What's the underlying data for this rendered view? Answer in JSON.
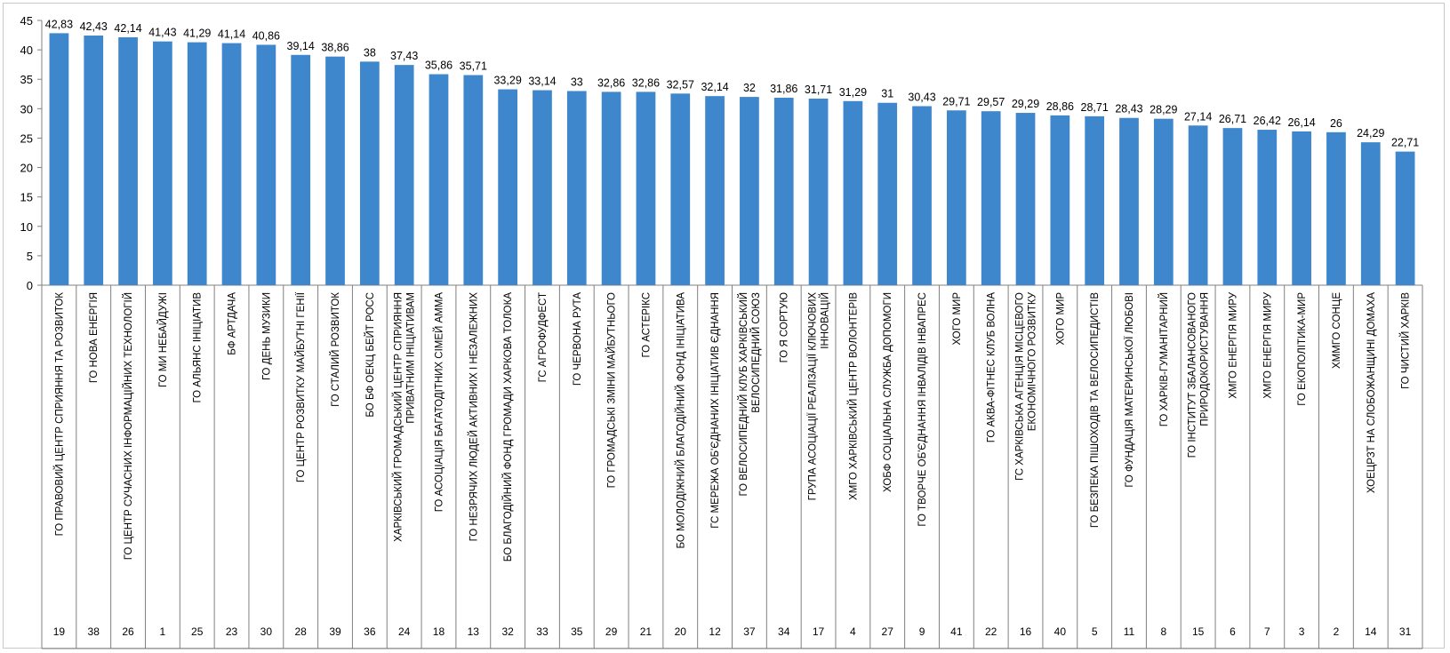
{
  "chart_data": {
    "type": "bar",
    "title": "",
    "xlabel": "",
    "ylabel": "",
    "ylim": [
      0,
      45
    ],
    "yticks": [
      "0",
      "5",
      "10",
      "15",
      "20",
      "25",
      "30",
      "35",
      "40",
      "45"
    ],
    "grid": false,
    "legend": "none",
    "bar_color": "#3f87cd",
    "categories": [
      "ГО ПРАВОВИЙ ЦЕНТР СПРИЯННЯ ТА РОЗВИТОК",
      "ГО НОВА ЕНЕРГІЯ",
      "ГО ЦЕНТР СУЧАСНИХ ІНФОРМАЦІЙНИХ ТЕХНОЛОГІЙ",
      "ГО МИ НЕБАЙДУЖІ",
      "ГО АЛЬЯНС ІНІЦІАТИВ",
      "БФ АРТДАЧА",
      "ГО ДЕНЬ МУЗИКИ",
      "ГО ЦЕНТР РОЗВИТКУ МАЙБУТНІ ГЕНІЇ",
      "ГО СТАЛИЙ РОЗВИТОК",
      "БО БФ ОЕКЦ БЕЙТ РОСС",
      "ХАРКІВСЬКИЙ ГРОМАДСЬКИЙ ЦЕНТР СПРИЯННЯ ПРИВАТНИМ ІНІЦІАТИВАМ",
      "ГО АСОЦІАЦІЯ БАГАТОДІТНИХ СІМЕЙ АММА",
      "ГО НЕЗРЯЧИХ ЛЮДЕЙ АКТИВНИХ І НЕЗАЛЕЖНИХ",
      "БО БЛАГОДІЙНИЙ ФОНД ГРОМАДИ ХАРКОВА ТОЛОКА",
      "ГС АГРОФУДФЕСТ",
      "ГО ЧЕРВОНА РУТА",
      "ГО ГРОМАДСЬКІ ЗМІНИ МАЙБУТНЬОГО",
      "ГО АСТЕРІКС",
      "БО МОЛОДІЖНИЙ БЛАГОДІЙНИЙ ФОНД ІНІЦІАТИВА",
      "ГС МЕРЕЖА ОБ'ЄДНАНИХ ІНІЦІАТИВ ЄДНАННЯ",
      "ГО ВЕЛОСИПЕДНИЙ КЛУБ ХАРКІВСЬКИЙ ВЕЛОСИПЕДНИЙ СОЮЗ",
      "ГО Я СОРТУЮ",
      "ГРУПА АСОЦІАЦІЇ РЕАЛІЗАЦІЇ КЛЮЧОВИХ ІННОВАЦІЙ",
      "ХМГО ХАРКІВСЬКИЙ ЦЕНТР ВОЛОНТЕРІВ",
      "ХОБФ СОЦІАЛЬНА СЛУЖБА ДОПОМОГИ",
      "ГО ТВОРЧЕ ОБ'ЄДНАННЯ ІНВАЛІДІВ ІНВАПРЕС",
      "ХОГО МИР",
      "ГО АКВА-ФІТНЕС КЛУБ ВОЛНА",
      "ГС ХАРКІВСЬКА АГЕНЦІЯ МІСЦЕВОГО ЕКОНОМІЧНОГО РОЗВИТКУ",
      "ХОГО МИР",
      "ГО БЕЗПЕКА ПІШОХОДІВ ТА ВЕЛОСИПЕДИСТІВ",
      "ГО ФУНДАЦІЯ МАТЕРИНСЬКОЇ ЛЮБОВІ",
      "ГО ХАРКІВ-ГУМАНІТАРНИЙ",
      "ГО ІНСТИТУТ ЗБАЛАНСОВАНОГО ПРИРОДОКОРИСТУВАННЯ",
      "ХМГО ЕНЕРГІЯ МИРУ",
      "ХМГО ЕНЕРГІЯ МИРУ",
      "ГО ЕКОПОЛІТИКА-МИР",
      "ХММГО СОНЦЕ",
      "ХОЕЦРЗТ НА СЛОБОЖАНЩИНІ ДОМАХА",
      "ГО ЧИСТИЙ ХАРКІВ"
    ],
    "values": [
      42.83,
      42.43,
      42.14,
      41.43,
      41.29,
      41.14,
      40.86,
      39.14,
      38.86,
      38,
      37.43,
      35.86,
      35.71,
      33.29,
      33.14,
      33,
      32.86,
      32.86,
      32.57,
      32.14,
      32,
      31.86,
      31.71,
      31.29,
      31,
      30.43,
      29.71,
      29.57,
      29.29,
      28.86,
      28.71,
      28.43,
      28.29,
      27.14,
      26.71,
      26.42,
      26.14,
      26,
      24.29,
      22.71
    ],
    "value_labels": [
      "42,83",
      "42,43",
      "42,14",
      "41,43",
      "41,29",
      "41,14",
      "40,86",
      "39,14",
      "38,86",
      "38",
      "37,43",
      "35,86",
      "35,71",
      "33,29",
      "33,14",
      "33",
      "32,86",
      "32,86",
      "32,57",
      "32,14",
      "32",
      "31,86",
      "31,71",
      "31,29",
      "31",
      "30,43",
      "29,71",
      "29,57",
      "29,29",
      "28,86",
      "28,71",
      "28,43",
      "28,29",
      "27,14",
      "26,71",
      "26,42",
      "26,14",
      "26",
      "24,29",
      "22,71"
    ],
    "ids": [
      "19",
      "38",
      "26",
      "1",
      "25",
      "23",
      "30",
      "28",
      "39",
      "36",
      "24",
      "18",
      "13",
      "32",
      "33",
      "35",
      "29",
      "21",
      "20",
      "12",
      "37",
      "34",
      "17",
      "4",
      "27",
      "9",
      "41",
      "22",
      "16",
      "40",
      "5",
      "11",
      "8",
      "15",
      "6",
      "7",
      "3",
      "2",
      "14",
      "31"
    ]
  }
}
